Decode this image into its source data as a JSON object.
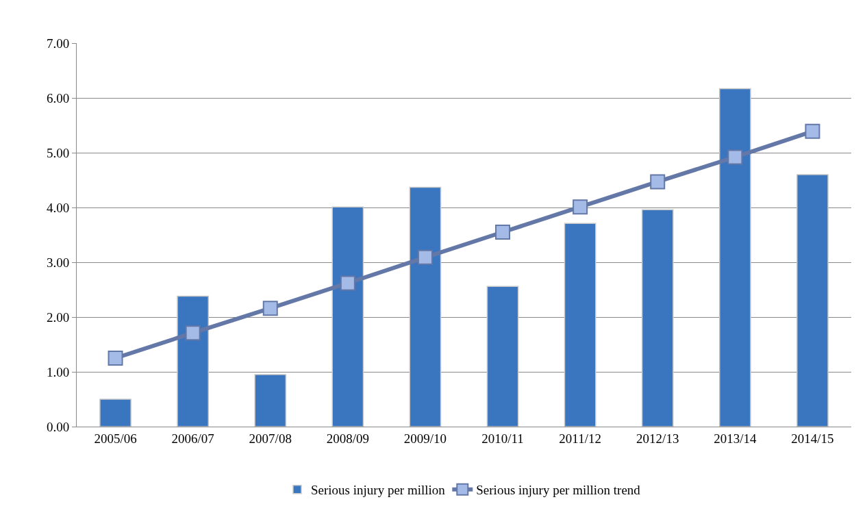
{
  "chart_data": {
    "type": "bar",
    "categories": [
      "2005/06",
      "2006/07",
      "2007/08",
      "2008/09",
      "2009/10",
      "2010/11",
      "2011/12",
      "2012/13",
      "2013/14",
      "2014/15"
    ],
    "series": [
      {
        "name": "Serious injury per million",
        "color": "#3a75bf",
        "values": [
          0.5,
          2.38,
          0.95,
          4.01,
          4.37,
          2.56,
          3.71,
          3.96,
          6.17,
          4.6
        ]
      },
      {
        "name": "Serious injury per million trend",
        "type": "line",
        "color": "#6478a8",
        "marker": "square",
        "values": [
          1.25,
          1.71,
          2.16,
          2.62,
          3.09,
          3.55,
          4.01,
          4.47,
          4.92,
          5.39
        ]
      }
    ],
    "ylim": [
      0,
      7
    ],
    "yticks": [
      {
        "value": 0,
        "label": "0.00"
      },
      {
        "value": 1,
        "label": "1.00"
      },
      {
        "value": 2,
        "label": "2.00"
      },
      {
        "value": 3,
        "label": "3.00"
      },
      {
        "value": 4,
        "label": "4.00"
      },
      {
        "value": 5,
        "label": "5.00"
      },
      {
        "value": 6,
        "label": "6.00"
      },
      {
        "value": 7,
        "label": "7.00"
      }
    ],
    "grid": "y",
    "legend": "bottom"
  }
}
